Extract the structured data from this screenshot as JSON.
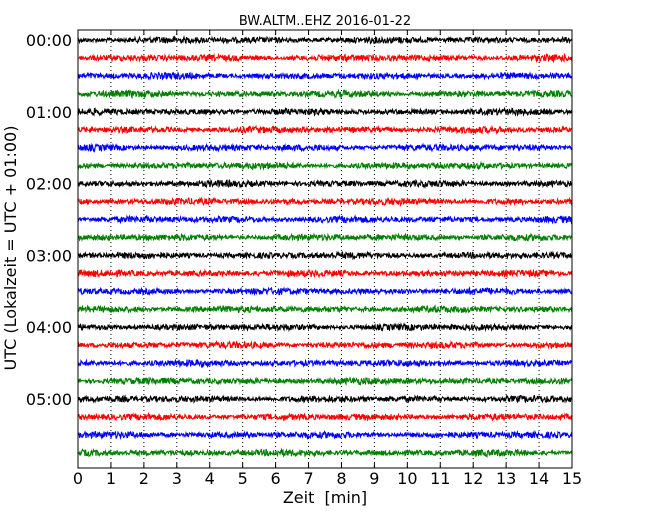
{
  "chart_data": {
    "type": "line",
    "title": "BW.ALTM..EHZ 2016-01-22",
    "xlabel": "Zeit  [min]",
    "ylabel": "UTC (Lokalzeit = UTC + 01:00)",
    "xlim": [
      0,
      15
    ],
    "x_ticks": [
      0,
      1,
      2,
      3,
      4,
      5,
      6,
      7,
      8,
      9,
      10,
      11,
      12,
      13,
      14,
      15
    ],
    "x_tick_labels": [
      "0",
      "1",
      "2",
      "3",
      "4",
      "5",
      "6",
      "7",
      "8",
      "9",
      "10",
      "11",
      "12",
      "13",
      "14",
      "15"
    ],
    "x_grid": true,
    "y_tick_labels": [
      "00:00",
      "01:00",
      "02:00",
      "03:00",
      "04:00",
      "05:00"
    ],
    "trace_interval_min": 15,
    "traces": [
      {
        "start": "00:00",
        "color": "#000000"
      },
      {
        "start": "00:15",
        "color": "#ff0000"
      },
      {
        "start": "00:30",
        "color": "#0000ff"
      },
      {
        "start": "00:45",
        "color": "#008000"
      },
      {
        "start": "01:00",
        "color": "#000000"
      },
      {
        "start": "01:15",
        "color": "#ff0000"
      },
      {
        "start": "01:30",
        "color": "#0000ff"
      },
      {
        "start": "01:45",
        "color": "#008000"
      },
      {
        "start": "02:00",
        "color": "#000000"
      },
      {
        "start": "02:15",
        "color": "#ff0000"
      },
      {
        "start": "02:30",
        "color": "#0000ff"
      },
      {
        "start": "02:45",
        "color": "#008000"
      },
      {
        "start": "03:00",
        "color": "#000000"
      },
      {
        "start": "03:15",
        "color": "#ff0000"
      },
      {
        "start": "03:30",
        "color": "#0000ff"
      },
      {
        "start": "03:45",
        "color": "#008000"
      },
      {
        "start": "04:00",
        "color": "#000000"
      },
      {
        "start": "04:15",
        "color": "#ff0000"
      },
      {
        "start": "04:30",
        "color": "#0000ff"
      },
      {
        "start": "04:45",
        "color": "#008000"
      },
      {
        "start": "05:00",
        "color": "#000000"
      },
      {
        "start": "05:15",
        "color": "#ff0000"
      },
      {
        "start": "05:30",
        "color": "#0000ff"
      },
      {
        "start": "05:45",
        "color": "#008000"
      }
    ]
  }
}
